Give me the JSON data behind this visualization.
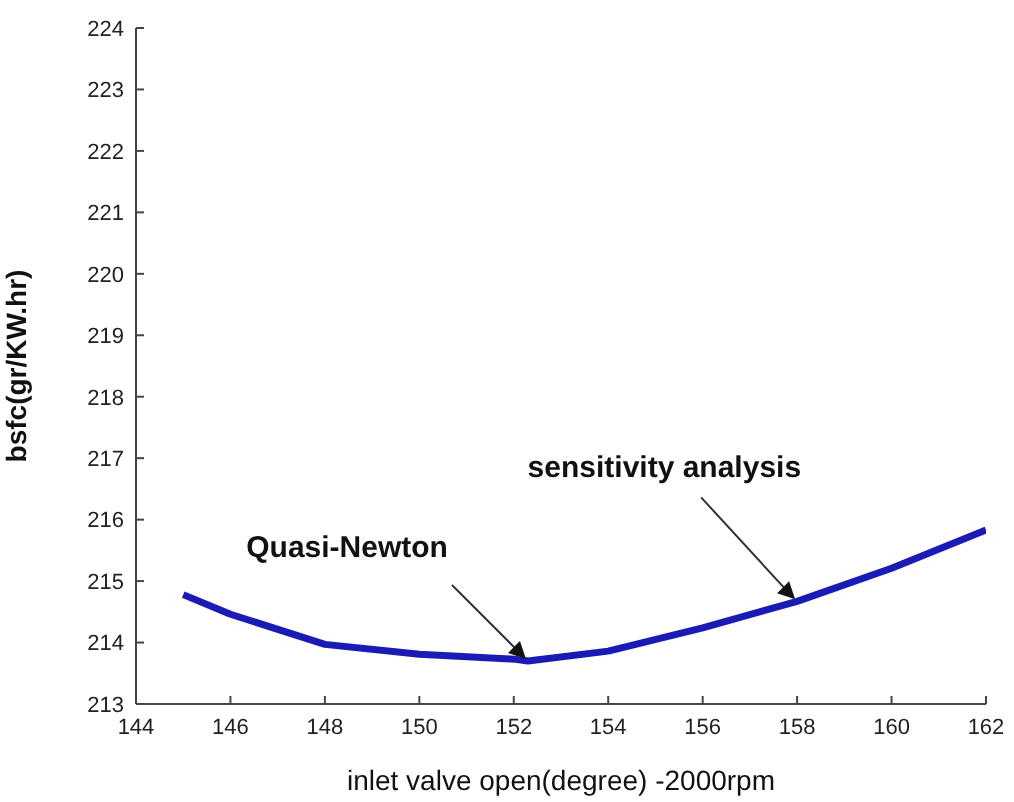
{
  "chart_data": {
    "type": "line",
    "xlabel": "inlet valve open(degree) -2000rpm",
    "ylabel": "bsfc(gr/KW.hr)",
    "x": [
      145,
      146,
      148,
      150,
      152,
      152.3,
      154,
      156,
      158,
      160,
      162
    ],
    "series": [
      {
        "color": "#1a1ab4",
        "values": [
          214.78,
          214.46,
          213.97,
          213.81,
          213.73,
          213.7,
          213.86,
          214.24,
          214.67,
          215.21,
          215.83
        ]
      }
    ],
    "xlim": [
      144,
      162
    ],
    "xticks": [
      144,
      146,
      148,
      150,
      152,
      154,
      156,
      158,
      160,
      162
    ],
    "ylim": [
      213,
      224
    ],
    "yticks": [
      213,
      214,
      215,
      216,
      217,
      218,
      219,
      220,
      221,
      222,
      223,
      224
    ],
    "grid": false,
    "marker": "none",
    "line_style": "solid",
    "annotations": [
      {
        "text": "Quasi-Newton",
        "x": 152.3,
        "y": 213.7
      },
      {
        "text": "sensitivity analysis",
        "x": 158,
        "y": 214.67
      }
    ]
  }
}
